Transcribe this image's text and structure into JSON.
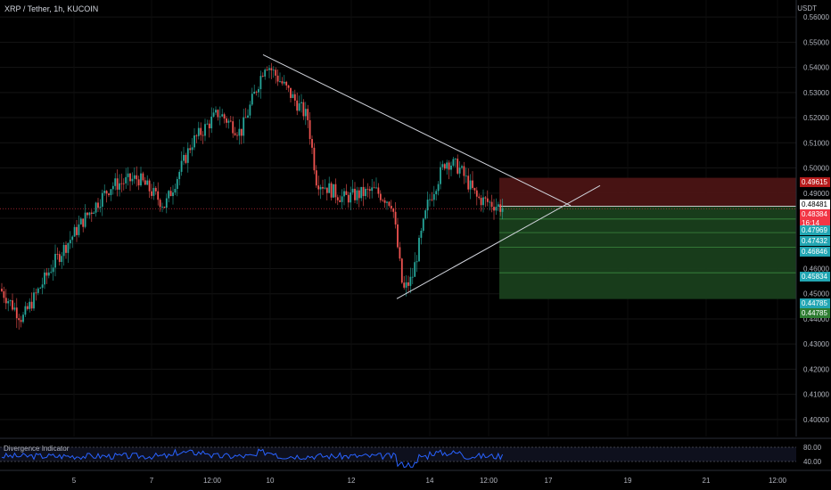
{
  "chart": {
    "symbol": "XRP / Tether, 1h, KUCOIN",
    "currency": "USDT",
    "indicator_title": "Divergence Indicator",
    "colors": {
      "background": "#000000",
      "up": "#26a69a",
      "down": "#ef5350",
      "rsi_line": "#2962ff",
      "trendline": "#d1d4dc",
      "stop_zone": "#4b1414",
      "target_zone": "#193f1c",
      "price_line": "#f23645"
    },
    "price_ticks": [
      "0.56000",
      "0.55000",
      "0.54000",
      "0.53000",
      "0.52000",
      "0.51000",
      "0.50000",
      "0.49000",
      "0.48000",
      "0.47000",
      "0.46000",
      "0.45000",
      "0.44000",
      "0.43000",
      "0.42000",
      "0.41000",
      "0.40000"
    ],
    "time_ticks": [
      "5",
      "7",
      "12:00",
      "10",
      "12",
      "14",
      "12:00",
      "17",
      "19",
      "21",
      "12:00"
    ],
    "rsi_ticks": [
      "80.00",
      "40.00"
    ],
    "tags": {
      "stop": "0.49615",
      "white": "0.48481",
      "current_price": "0.48384",
      "countdown": "16:14",
      "t1": "0.47969",
      "t2": "0.47432",
      "t3": "0.46846",
      "t4": "0.45834",
      "t5": "0.44785",
      "t6": "0.44785"
    }
  },
  "chart_data": {
    "type": "candlestick",
    "interval": "1h",
    "y_range": [
      0.395,
      0.565
    ],
    "x_ticks": [
      "5",
      "7",
      "12:00",
      "10",
      "12",
      "14",
      "12:00",
      "17",
      "19",
      "21",
      "12:00"
    ],
    "close_path": [
      [
        0,
        0.452
      ],
      [
        25,
        0.44
      ],
      [
        60,
        0.462
      ],
      [
        95,
        0.48
      ],
      [
        125,
        0.493
      ],
      [
        155,
        0.496
      ],
      [
        185,
        0.485
      ],
      [
        215,
        0.51
      ],
      [
        245,
        0.522
      ],
      [
        270,
        0.514
      ],
      [
        298,
        0.542
      ],
      [
        320,
        0.532
      ],
      [
        345,
        0.52
      ],
      [
        355,
        0.495
      ],
      [
        385,
        0.488
      ],
      [
        420,
        0.491
      ],
      [
        440,
        0.486
      ],
      [
        452,
        0.451
      ],
      [
        462,
        0.456
      ],
      [
        480,
        0.486
      ],
      [
        500,
        0.503
      ],
      [
        515,
        0.5
      ],
      [
        535,
        0.488
      ],
      [
        565,
        0.484
      ]
    ],
    "trendline_upper": [
      [
        295,
        0.545
      ],
      [
        640,
        0.485
      ]
    ],
    "trendline_lower": [
      [
        445,
        0.448
      ],
      [
        673,
        0.493
      ]
    ],
    "position": {
      "entry": 0.4848,
      "stop": 0.4961,
      "target": 0.4479,
      "levels": [
        0.47969,
        0.47432,
        0.46846,
        0.45834
      ]
    },
    "rsi_range": [
      20,
      100
    ],
    "rsi_levels": [
      80,
      40
    ]
  }
}
